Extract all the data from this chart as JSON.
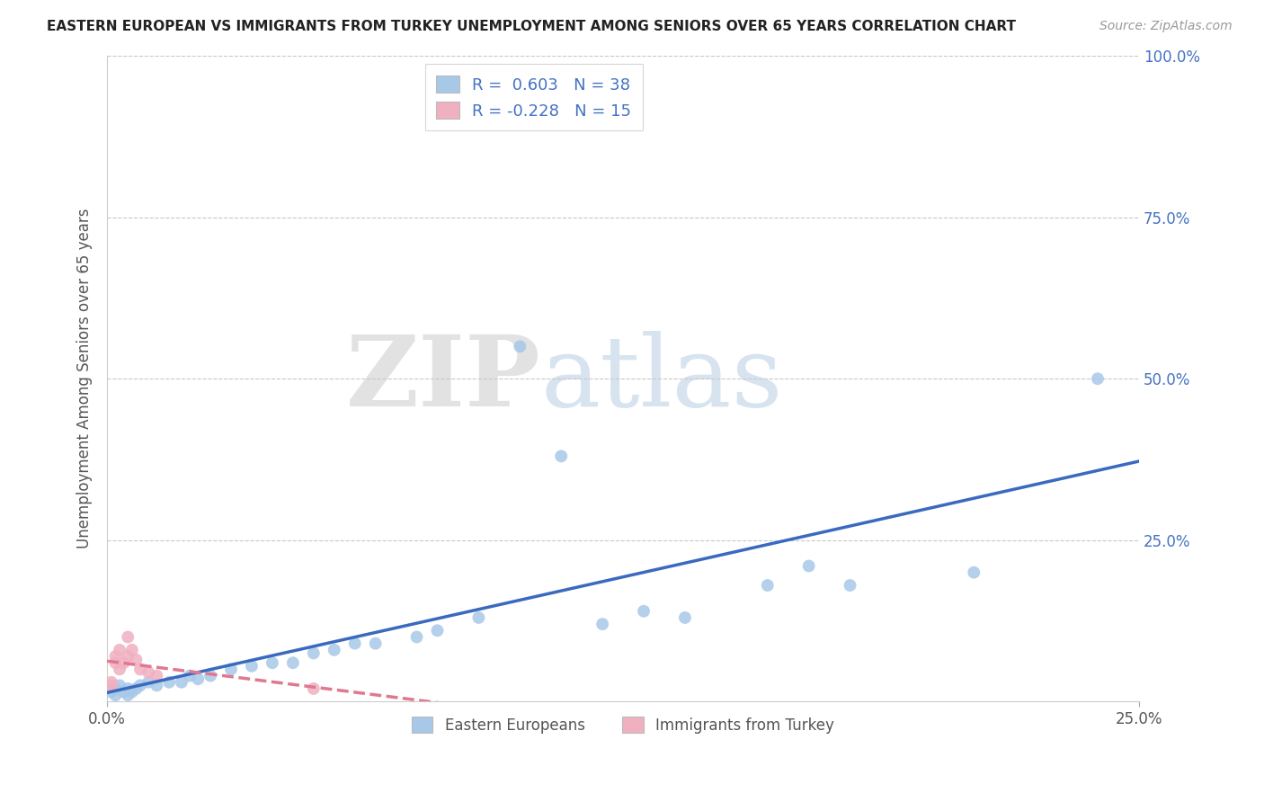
{
  "title": "EASTERN EUROPEAN VS IMMIGRANTS FROM TURKEY UNEMPLOYMENT AMONG SENIORS OVER 65 YEARS CORRELATION CHART",
  "source": "Source: ZipAtlas.com",
  "ylabel": "Unemployment Among Seniors over 65 years",
  "background_color": "#ffffff",
  "grid_color": "#c8c8c8",
  "eastern_color": "#a8c8e8",
  "turkey_color": "#f0b0c0",
  "eastern_line_color": "#3a6abf",
  "turkey_line_color": "#e07890",
  "R_eastern": 0.603,
  "N_eastern": 38,
  "R_turkey": -0.228,
  "N_turkey": 15,
  "watermark_zip": "ZIP",
  "watermark_atlas": "atlas",
  "xlim": [
    0.0,
    0.25
  ],
  "ylim": [
    0.0,
    1.0
  ],
  "ee_x": [
    0.001,
    0.002,
    0.002,
    0.003,
    0.004,
    0.005,
    0.005,
    0.006,
    0.007,
    0.008,
    0.01,
    0.012,
    0.015,
    0.018,
    0.02,
    0.022,
    0.025,
    0.03,
    0.035,
    0.04,
    0.045,
    0.05,
    0.055,
    0.06,
    0.065,
    0.075,
    0.08,
    0.09,
    0.1,
    0.11,
    0.12,
    0.13,
    0.14,
    0.16,
    0.17,
    0.18,
    0.21,
    0.24
  ],
  "ee_y": [
    0.015,
    0.02,
    0.01,
    0.025,
    0.015,
    0.02,
    0.01,
    0.015,
    0.02,
    0.025,
    0.03,
    0.025,
    0.03,
    0.03,
    0.04,
    0.035,
    0.04,
    0.05,
    0.055,
    0.06,
    0.06,
    0.075,
    0.08,
    0.09,
    0.09,
    0.1,
    0.11,
    0.13,
    0.55,
    0.38,
    0.12,
    0.14,
    0.13,
    0.18,
    0.21,
    0.18,
    0.2,
    0.5
  ],
  "tr_x": [
    0.001,
    0.001,
    0.002,
    0.002,
    0.003,
    0.003,
    0.004,
    0.005,
    0.005,
    0.006,
    0.007,
    0.008,
    0.01,
    0.012,
    0.05
  ],
  "tr_y": [
    0.025,
    0.03,
    0.06,
    0.07,
    0.05,
    0.08,
    0.06,
    0.07,
    0.1,
    0.08,
    0.065,
    0.05,
    0.045,
    0.04,
    0.02
  ]
}
